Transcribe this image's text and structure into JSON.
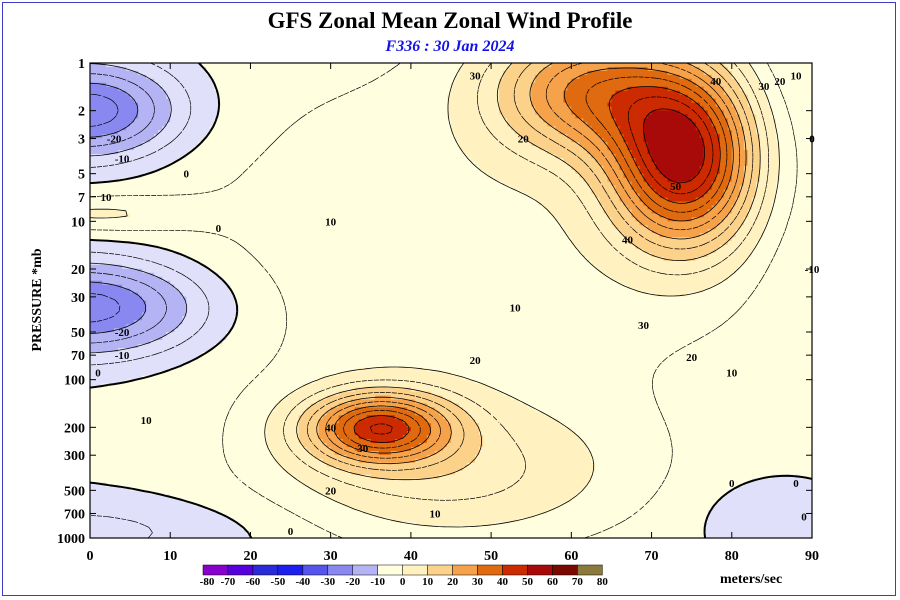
{
  "chart_data": {
    "type": "contour",
    "title": "GFS Zonal Mean Zonal Wind Profile",
    "subtitle": "F336 : 30 Jan 2024",
    "ylabel": "PRESSURE *mb",
    "units": "meters/sec",
    "x_ticks": [
      0,
      10,
      20,
      30,
      40,
      50,
      60,
      70,
      80,
      90
    ],
    "xlim": [
      0,
      90
    ],
    "y_scale": "log",
    "y_ticks": [
      1,
      2,
      3,
      5,
      7,
      10,
      20,
      30,
      50,
      70,
      100,
      200,
      300,
      500,
      700,
      1000
    ],
    "ylim": [
      1000,
      1
    ],
    "colorbar_levels": [
      -80,
      -70,
      -60,
      -50,
      -40,
      -30,
      -20,
      -10,
      0,
      10,
      20,
      30,
      40,
      50,
      60,
      70,
      80
    ],
    "colorbar_colors": [
      "#8800cc",
      "#5500dd",
      "#2a2ad8",
      "#1e1ef0",
      "#5555ee",
      "#8888f0",
      "#b4b4f5",
      "#e0e0fb",
      "#ffffe0",
      "#fff2c0",
      "#fcd28a",
      "#f5a24a",
      "#e06a10",
      "#cc2a00",
      "#a80a0a",
      "#7a0a00",
      "#8a7a3c"
    ],
    "contour_labels": [
      "-20",
      "-10",
      "0",
      "10",
      "20",
      "30",
      "40",
      "50"
    ],
    "features": [
      {
        "desc": "stratospheric westerly jet max",
        "x": 74,
        "y_mb": 4,
        "value": 56
      },
      {
        "desc": "subtropical jet core",
        "x": 36,
        "y_mb": 200,
        "value": 43
      },
      {
        "desc": "tropical easterly core upper",
        "x": 1,
        "y_mb": 2,
        "value": -28
      },
      {
        "desc": "tropical easterly core mid",
        "x": 1,
        "y_mb": 35,
        "value": -28
      },
      {
        "desc": "polar easterlies near surface",
        "x": 82,
        "y_mb": 700,
        "value": -4
      }
    ]
  }
}
